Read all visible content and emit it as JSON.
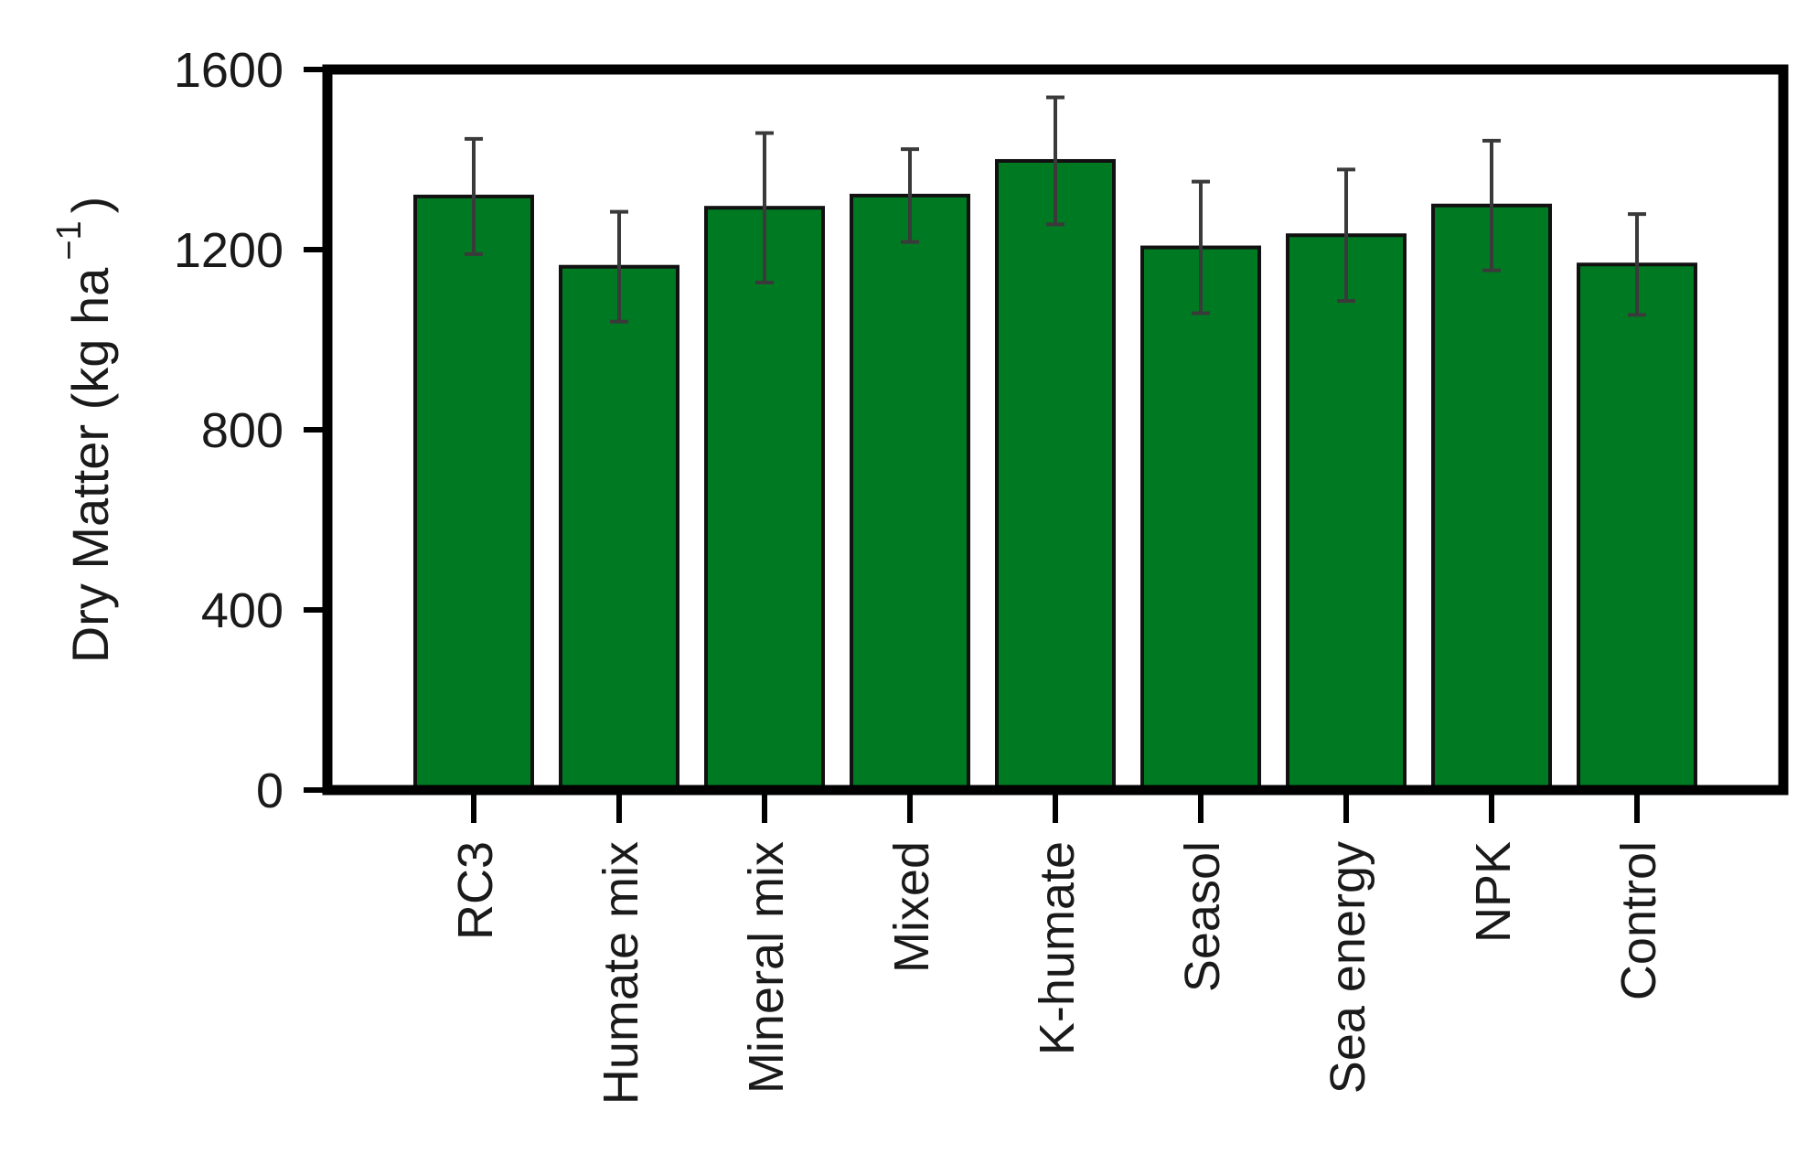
{
  "chart_data": {
    "type": "bar",
    "title": "",
    "xlabel": "",
    "ylabel": "Dry Matter (kg ha",
    "ylabel_superscript": "−1",
    "ylabel_close": ")",
    "ylim": [
      0,
      1600
    ],
    "yticks": [
      0,
      400,
      800,
      1200,
      1600
    ],
    "grid": false,
    "legend": "none",
    "bar_color": "#007a22",
    "bar_edge_color": "#111111",
    "errorbar_color": "#3a3a3a",
    "categories": [
      "RC3",
      "Humate mix",
      "Mineral mix",
      "Mixed",
      "K-humate",
      "Seasol",
      "Sea energy",
      "NPK",
      "Control"
    ],
    "values": [
      1318,
      1162,
      1293,
      1320,
      1397,
      1205,
      1232,
      1298,
      1167
    ],
    "error": [
      128,
      122,
      166,
      103,
      141,
      146,
      146,
      144,
      112
    ]
  }
}
